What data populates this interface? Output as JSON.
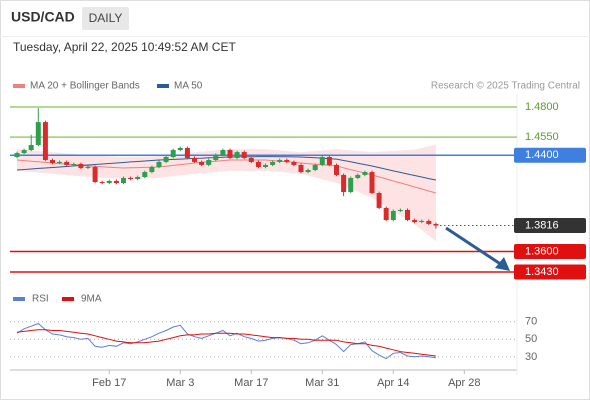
{
  "header": {
    "symbol": "USD/CAD",
    "timeframe": "DAILY",
    "timestamp": "Tuesday, April 22, 2025 10:49:52 AM CET"
  },
  "chart_data": [
    {
      "type": "candlestick",
      "copyright": "Research © 2025 Trading Central",
      "up_color": "#2e9e4f",
      "down_color": "#d92b2b",
      "ylim": [
        1.3322,
        1.4983
      ],
      "x_labels": [
        "Feb 17",
        "Mar 3",
        "Mar 17",
        "Mar 31",
        "Apr 14",
        "Apr 28"
      ],
      "open": [
        1.4385,
        1.4418,
        1.4443,
        1.4485,
        1.4675,
        1.436,
        1.4335,
        1.4344,
        1.4319,
        1.4327,
        1.4294,
        1.4302,
        1.4177,
        1.4169,
        1.4186,
        1.4169,
        1.4211,
        1.4202,
        1.4219,
        1.426,
        1.4302,
        1.4344,
        1.4385,
        1.4443,
        1.446,
        1.4377,
        1.4344,
        1.4319,
        1.436,
        1.4402,
        1.4443,
        1.4377,
        1.4426,
        1.4377,
        1.4344,
        1.4302,
        1.4319,
        1.4344,
        1.436,
        1.4344,
        1.4319,
        1.426,
        1.4277,
        1.4319,
        1.4385,
        1.4319,
        1.4236,
        1.4094,
        1.4211,
        1.4236,
        1.426,
        1.4086,
        1.3962,
        1.3862,
        1.3937,
        1.3945,
        1.3862,
        1.3845,
        1.3854,
        1.3829
      ],
      "high": [
        1.443,
        1.4455,
        1.457,
        1.4792,
        1.4687,
        1.4372,
        1.4356,
        1.4356,
        1.4339,
        1.4339,
        1.4314,
        1.4314,
        1.4189,
        1.4198,
        1.4198,
        1.4223,
        1.4223,
        1.4231,
        1.4272,
        1.4314,
        1.4356,
        1.4397,
        1.4455,
        1.4472,
        1.4472,
        1.4389,
        1.4356,
        1.4372,
        1.4414,
        1.4455,
        1.4455,
        1.4438,
        1.4438,
        1.4389,
        1.4356,
        1.4331,
        1.4356,
        1.4372,
        1.4372,
        1.4356,
        1.4331,
        1.4289,
        1.4331,
        1.4397,
        1.4397,
        1.4331,
        1.4248,
        1.4223,
        1.4248,
        1.4272,
        1.4272,
        1.4098,
        1.3974,
        1.3949,
        1.3957,
        1.3957,
        1.3874,
        1.3866,
        1.3866,
        1.3841
      ],
      "low": [
        1.4375,
        1.4408,
        1.4433,
        1.4475,
        1.435,
        1.4325,
        1.4325,
        1.4309,
        1.4309,
        1.4284,
        1.4284,
        1.4167,
        1.4159,
        1.4159,
        1.4159,
        1.4159,
        1.4192,
        1.4192,
        1.4209,
        1.425,
        1.4292,
        1.4334,
        1.4375,
        1.4433,
        1.4367,
        1.4334,
        1.4309,
        1.4309,
        1.435,
        1.4392,
        1.4367,
        1.4367,
        1.4367,
        1.4334,
        1.4292,
        1.4292,
        1.4309,
        1.4334,
        1.4334,
        1.4309,
        1.425,
        1.425,
        1.4267,
        1.4309,
        1.4309,
        1.4226,
        1.406,
        1.4084,
        1.4201,
        1.4226,
        1.4076,
        1.3952,
        1.3852,
        1.3852,
        1.3927,
        1.3852,
        1.3835,
        1.3835,
        1.3819,
        1.379
      ],
      "close": [
        1.4418,
        1.4443,
        1.4485,
        1.4675,
        1.436,
        1.4335,
        1.4344,
        1.4319,
        1.4327,
        1.4294,
        1.4302,
        1.4177,
        1.4169,
        1.4186,
        1.4169,
        1.4211,
        1.4202,
        1.4219,
        1.426,
        1.4302,
        1.4344,
        1.4385,
        1.4443,
        1.446,
        1.4377,
        1.4344,
        1.4319,
        1.436,
        1.4402,
        1.4443,
        1.4377,
        1.4426,
        1.4377,
        1.4344,
        1.4302,
        1.4319,
        1.4344,
        1.436,
        1.4344,
        1.4319,
        1.426,
        1.4277,
        1.4319,
        1.4385,
        1.4319,
        1.4236,
        1.4094,
        1.4211,
        1.4236,
        1.426,
        1.4086,
        1.3962,
        1.3862,
        1.3937,
        1.3945,
        1.3862,
        1.3845,
        1.3854,
        1.3829,
        1.3816
      ],
      "bands": {
        "color": "#fde3e3",
        "upper": [
          1.445,
          1.4445,
          1.444,
          1.4435,
          1.443,
          1.4425,
          1.442,
          1.4415,
          1.441,
          1.4405,
          1.44,
          1.4397,
          1.4394,
          1.439,
          1.4387,
          1.4384,
          1.4386,
          1.4387,
          1.4389,
          1.439,
          1.4392,
          1.4399,
          1.4405,
          1.4412,
          1.4418,
          1.4425,
          1.443,
          1.4435,
          1.444,
          1.4445,
          1.445,
          1.445,
          1.445,
          1.445,
          1.445,
          1.445,
          1.4445,
          1.444,
          1.4435,
          1.443,
          1.4425,
          1.443,
          1.4435,
          1.444,
          1.4445,
          1.445,
          1.4445,
          1.444,
          1.4436,
          1.4431,
          1.4426,
          1.4429,
          1.4433,
          1.4436,
          1.444,
          1.4443,
          1.4446,
          1.446,
          1.4473,
          1.4486
        ],
        "lower": [
          1.427,
          1.4265,
          1.426,
          1.4255,
          1.425,
          1.4245,
          1.424,
          1.4235,
          1.423,
          1.4225,
          1.422,
          1.4217,
          1.4214,
          1.421,
          1.4207,
          1.4204,
          1.4206,
          1.4207,
          1.4209,
          1.421,
          1.4212,
          1.4219,
          1.4225,
          1.4232,
          1.4238,
          1.4245,
          1.425,
          1.4255,
          1.426,
          1.4265,
          1.427,
          1.427,
          1.427,
          1.427,
          1.427,
          1.427,
          1.4265,
          1.426,
          1.4255,
          1.425,
          1.4245,
          1.423,
          1.4215,
          1.42,
          1.4185,
          1.417,
          1.4145,
          1.412,
          1.4096,
          1.4071,
          1.4046,
          1.4009,
          1.3973,
          1.3936,
          1.39,
          1.3863,
          1.3826,
          1.378,
          1.3733,
          1.3686
        ]
      },
      "series": [
        {
          "name": "MA 20 + Bollinger Bands",
          "color": "#f08080",
          "values": [
            1.436,
            1.4355,
            1.435,
            1.4345,
            1.434,
            1.4335,
            1.433,
            1.4325,
            1.432,
            1.4315,
            1.431,
            1.4307,
            1.4304,
            1.43,
            1.4297,
            1.4294,
            1.4296,
            1.4297,
            1.4299,
            1.43,
            1.4302,
            1.4309,
            1.4315,
            1.4322,
            1.4328,
            1.4335,
            1.434,
            1.4345,
            1.435,
            1.4355,
            1.436,
            1.436,
            1.436,
            1.436,
            1.436,
            1.436,
            1.4355,
            1.435,
            1.4345,
            1.434,
            1.4335,
            1.433,
            1.4325,
            1.432,
            1.4315,
            1.431,
            1.4295,
            1.428,
            1.4266,
            1.4251,
            1.4236,
            1.4219,
            1.4203,
            1.4186,
            1.417,
            1.4153,
            1.4136,
            1.412,
            1.4103,
            1.4086
          ]
        },
        {
          "name": "MA 50",
          "color": "#2a5c9a",
          "values": [
            1.4277,
            1.4281,
            1.4285,
            1.429,
            1.4294,
            1.4298,
            1.4302,
            1.4306,
            1.4311,
            1.4315,
            1.4319,
            1.4323,
            1.4327,
            1.4331,
            1.4335,
            1.4339,
            1.4344,
            1.4348,
            1.4352,
            1.4356,
            1.436,
            1.4363,
            1.4365,
            1.4368,
            1.437,
            1.4373,
            1.4375,
            1.4378,
            1.438,
            1.4383,
            1.4385,
            1.4386,
            1.4387,
            1.4387,
            1.4388,
            1.4388,
            1.4388,
            1.4387,
            1.4387,
            1.4386,
            1.4385,
            1.4382,
            1.4378,
            1.4375,
            1.4371,
            1.4368,
            1.4356,
            1.4345,
            1.4333,
            1.4322,
            1.431,
            1.4297,
            1.4284,
            1.427,
            1.4257,
            1.4244,
            1.4231,
            1.4219,
            1.4206,
            1.4194
          ]
        }
      ],
      "levels": [
        {
          "value": 1.48,
          "label": "1.4800",
          "color": "#9acd6e",
          "text_color": "#5aa02c",
          "box": false,
          "dotted": false
        },
        {
          "value": 1.455,
          "label": "1.4550",
          "color": "#9acd6e",
          "text_color": "#5aa02c",
          "box": false,
          "dotted": false
        },
        {
          "value": 1.44,
          "label": "1.4400",
          "color": "#3f7fe0",
          "text_color": "#ffffff",
          "box": true,
          "dotted": false
        },
        {
          "value": 1.3816,
          "label": "1.3816",
          "color": "#333333",
          "text_color": "#ffffff",
          "box": true,
          "dotted": true
        },
        {
          "value": 1.36,
          "label": "1.3600",
          "color": "#e01010",
          "text_color": "#ffffff",
          "box": true,
          "dotted": false
        },
        {
          "value": 1.343,
          "label": "1.3430",
          "color": "#e01010",
          "text_color": "#ffffff",
          "box": true,
          "dotted": false
        }
      ]
    },
    {
      "type": "line",
      "ylim": [
        15,
        80
      ],
      "yticks": [
        30,
        50,
        70
      ],
      "series": [
        {
          "name": "RSI",
          "color": "#5b7fd6",
          "values": [
            57,
            62,
            65,
            68,
            61,
            56,
            55,
            53,
            52,
            50,
            51,
            42,
            41,
            43,
            42,
            46,
            45,
            47,
            50,
            53,
            57,
            60,
            64,
            66,
            56,
            53,
            51,
            54,
            57,
            60,
            54,
            57,
            53,
            51,
            48,
            49,
            51,
            52,
            51,
            49,
            45,
            46,
            49,
            54,
            49,
            44,
            36,
            44,
            45,
            47,
            37,
            32,
            28,
            34,
            35,
            31,
            30,
            31,
            30,
            29
          ]
        },
        {
          "name": "9MA",
          "color": "#e01010",
          "values": [
            58,
            59,
            60,
            61,
            61,
            60,
            60,
            59,
            58,
            57,
            56,
            54,
            52,
            50,
            48,
            47,
            46,
            46,
            46,
            47,
            48,
            50,
            52,
            54,
            55,
            55,
            56,
            56,
            57,
            57,
            57,
            56,
            56,
            55,
            54,
            53,
            52,
            52,
            51,
            51,
            50,
            50,
            49,
            49,
            49,
            49,
            47,
            46,
            45,
            45,
            43,
            42,
            40,
            38,
            36,
            35,
            34,
            33,
            32,
            31
          ]
        }
      ]
    }
  ]
}
